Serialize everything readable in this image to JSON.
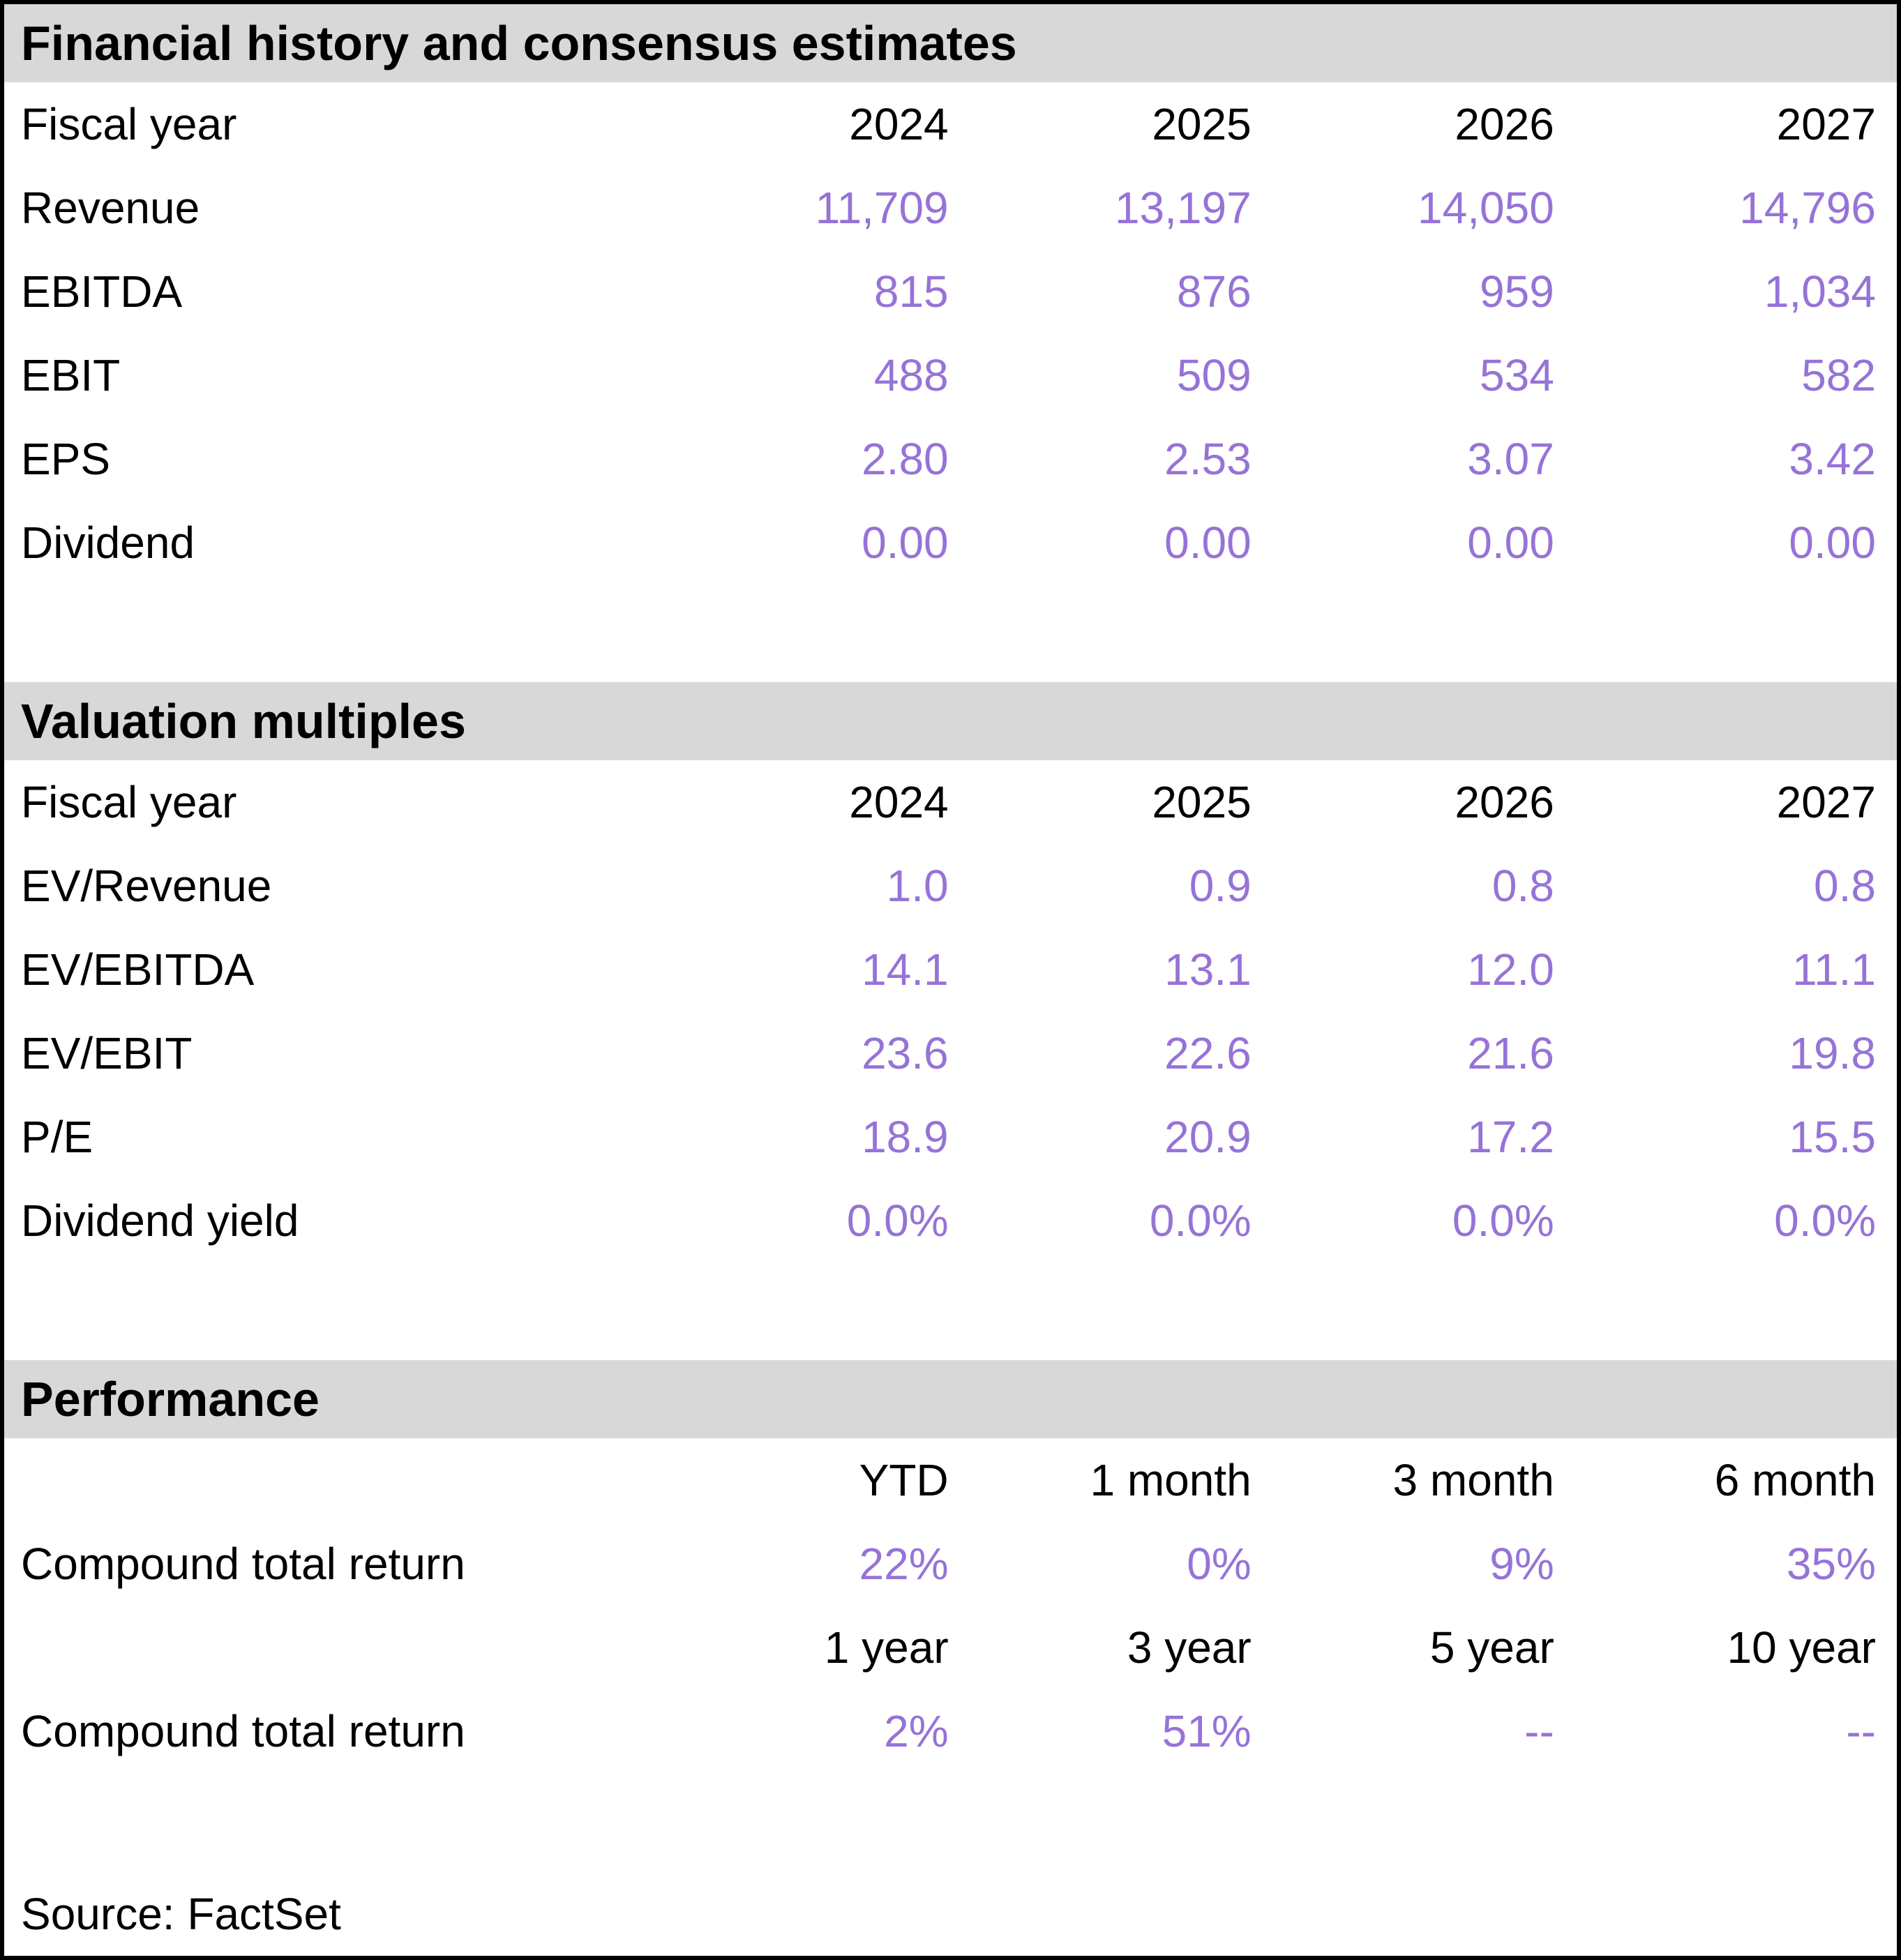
{
  "colors": {
    "accent_purple": "#9673d7",
    "section_header_bg": "#d8d8d8",
    "border": "#000000"
  },
  "sections": [
    {
      "title": "Financial history and consensus estimates",
      "header_row": {
        "label": "Fiscal year",
        "values": [
          "2024",
          "2025",
          "2026",
          "2027"
        ]
      },
      "rows": [
        {
          "label": "Revenue",
          "values": [
            "11,709",
            "13,197",
            "14,050",
            "14,796"
          ]
        },
        {
          "label": "EBITDA",
          "values": [
            "815",
            "876",
            "959",
            "1,034"
          ]
        },
        {
          "label": "EBIT",
          "values": [
            "488",
            "509",
            "534",
            "582"
          ]
        },
        {
          "label": "EPS",
          "values": [
            "2.80",
            "2.53",
            "3.07",
            "3.42"
          ]
        },
        {
          "label": "Dividend",
          "values": [
            "0.00",
            "0.00",
            "0.00",
            "0.00"
          ]
        }
      ]
    },
    {
      "title": "Valuation multiples",
      "header_row": {
        "label": "Fiscal year",
        "values": [
          "2024",
          "2025",
          "2026",
          "2027"
        ]
      },
      "rows": [
        {
          "label": "EV/Revenue",
          "values": [
            "1.0",
            "0.9",
            "0.8",
            "0.8"
          ]
        },
        {
          "label": "EV/EBITDA",
          "values": [
            "14.1",
            "13.1",
            "12.0",
            "11.1"
          ]
        },
        {
          "label": "EV/EBIT",
          "values": [
            "23.6",
            "22.6",
            "21.6",
            "19.8"
          ]
        },
        {
          "label": "P/E",
          "values": [
            "18.9",
            "20.9",
            "17.2",
            "15.5"
          ]
        },
        {
          "label": "Dividend yield",
          "values": [
            "0.0%",
            "0.0%",
            "0.0%",
            "0.0%"
          ]
        }
      ]
    },
    {
      "title": "Performance",
      "blocks": [
        {
          "header": {
            "label": "",
            "values": [
              "YTD",
              "1 month",
              "3 month",
              "6 month"
            ]
          },
          "row": {
            "label": "Compound total return",
            "values": [
              "22%",
              "0%",
              "9%",
              "35%"
            ]
          }
        },
        {
          "header": {
            "label": "",
            "values": [
              "1 year",
              "3 year",
              "5 year",
              "10 year"
            ]
          },
          "row": {
            "label": "Compound total return",
            "values": [
              "2%",
              "51%",
              "--",
              "--"
            ]
          }
        }
      ]
    }
  ],
  "source": "Source: FactSet"
}
